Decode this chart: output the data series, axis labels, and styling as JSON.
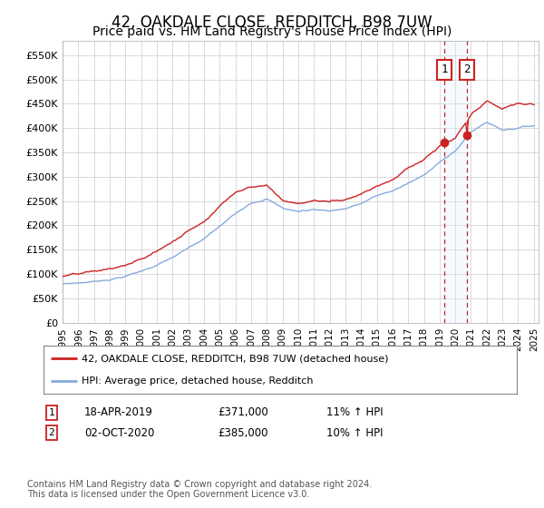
{
  "title": "42, OAKDALE CLOSE, REDDITCH, B98 7UW",
  "subtitle": "Price paid vs. HM Land Registry's House Price Index (HPI)",
  "title_fontsize": 12,
  "subtitle_fontsize": 10,
  "ylabel_ticks": [
    "£0",
    "£50K",
    "£100K",
    "£150K",
    "£200K",
    "£250K",
    "£300K",
    "£350K",
    "£400K",
    "£450K",
    "£500K",
    "£550K"
  ],
  "ytick_values": [
    0,
    50000,
    100000,
    150000,
    200000,
    250000,
    300000,
    350000,
    400000,
    450000,
    500000,
    550000
  ],
  "ylim": [
    0,
    580000
  ],
  "xlim_start": 1995.0,
  "xlim_end": 2025.3,
  "line1_color": "#cc2222",
  "line2_color": "#88aadd",
  "transaction1_date": 2019.29,
  "transaction1_price": 371000,
  "transaction1_label": "18-APR-2019",
  "transaction1_price_label": "£371,000",
  "transaction1_hpi_label": "11% ↑ HPI",
  "transaction2_date": 2020.75,
  "transaction2_price": 385000,
  "transaction2_label": "02-OCT-2020",
  "transaction2_price_label": "£385,000",
  "transaction2_hpi_label": "10% ↑ HPI",
  "legend_label1": "42, OAKDALE CLOSE, REDDITCH, B98 7UW (detached house)",
  "legend_label2": "HPI: Average price, detached house, Redditch",
  "footer1": "Contains HM Land Registry data © Crown copyright and database right 2024.",
  "footer2": "This data is licensed under the Open Government Licence v3.0.",
  "bg_color": "#ffffff",
  "plot_bg_color": "#ffffff",
  "grid_color": "#cccccc",
  "shade_color": "#ddeeff",
  "xtick_years": [
    1995,
    1996,
    1997,
    1998,
    1999,
    2000,
    2001,
    2002,
    2003,
    2004,
    2005,
    2006,
    2007,
    2008,
    2009,
    2010,
    2011,
    2012,
    2013,
    2014,
    2015,
    2016,
    2017,
    2018,
    2019,
    2020,
    2021,
    2022,
    2023,
    2024,
    2025
  ],
  "hpi_data": [
    80000,
    82000,
    85000,
    90000,
    97000,
    107000,
    120000,
    135000,
    152000,
    170000,
    195000,
    220000,
    245000,
    255000,
    235000,
    228000,
    232000,
    230000,
    235000,
    245000,
    260000,
    270000,
    285000,
    300000,
    330000,
    350000,
    390000,
    410000,
    395000,
    400000,
    405000
  ],
  "red_data": [
    95000,
    97000,
    100000,
    105000,
    112000,
    123000,
    140000,
    160000,
    182000,
    205000,
    238000,
    268000,
    282000,
    285000,
    255000,
    248000,
    255000,
    252000,
    258000,
    272000,
    290000,
    305000,
    328000,
    345000,
    371000,
    385000,
    430000,
    455000,
    440000,
    450000,
    448000
  ]
}
